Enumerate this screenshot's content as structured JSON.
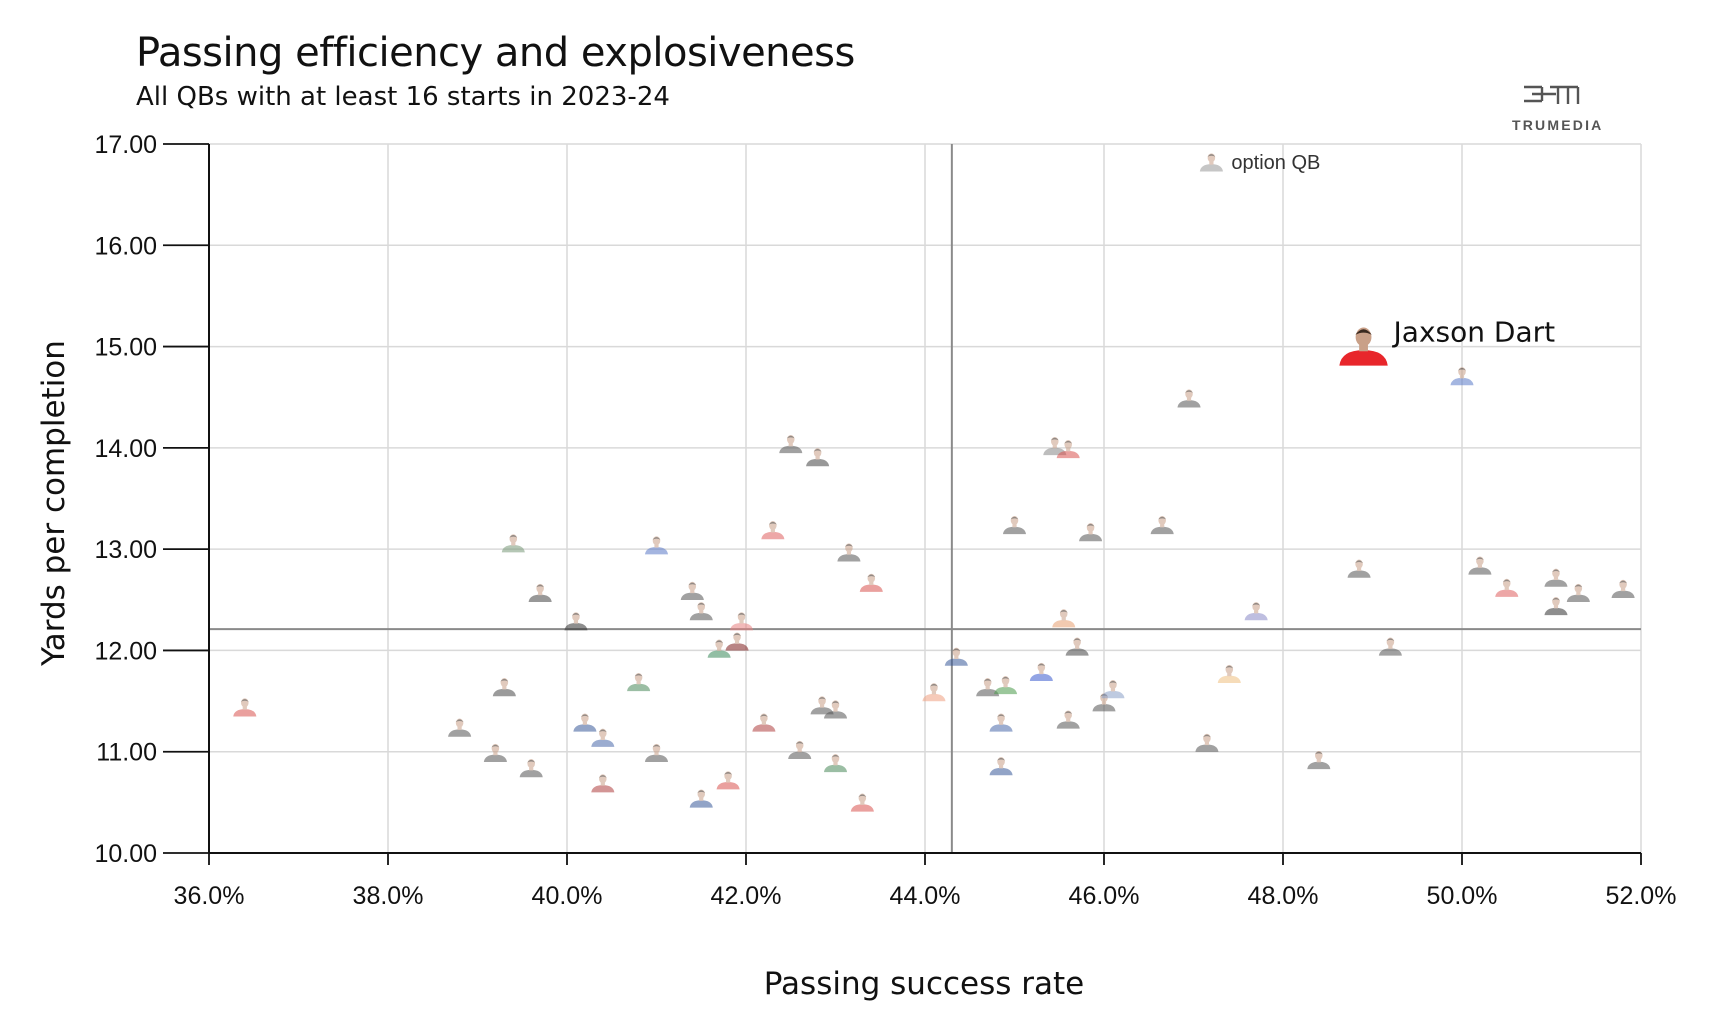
{
  "header": {
    "title": "Passing efficiency and explosiveness",
    "subtitle": "All QBs with at least 16 starts in 2023-24"
  },
  "brand": {
    "name": "TRUMEDIA",
    "mark": "TM"
  },
  "legend": {
    "icon": "qb-headshot-icon",
    "label": "option QB"
  },
  "colors": {
    "grid": "#d9d9d9",
    "axis": "#111111",
    "reference_line": "#8a8a8a",
    "highlight_jersey": "#e8262b",
    "faded_point": "#b8b8b8"
  },
  "chart_data": {
    "type": "scatter",
    "title": "Passing efficiency and explosiveness",
    "subtitle": "All QBs with at least 16 starts in 2023-24",
    "xlabel": "Passing success rate",
    "ylabel": "Yards per completion",
    "xlim": [
      36.0,
      52.0
    ],
    "ylim": [
      10.0,
      17.0
    ],
    "xticks": [
      "36.0%",
      "38.0%",
      "40.0%",
      "42.0%",
      "44.0%",
      "46.0%",
      "48.0%",
      "50.0%",
      "52.0%"
    ],
    "yticks": [
      "10.00",
      "11.00",
      "12.00",
      "13.00",
      "14.00",
      "15.00",
      "16.00",
      "17.00"
    ],
    "grid": true,
    "reference_lines": {
      "x": 44.3,
      "y": 12.21
    },
    "highlight": {
      "name": "Jaxson Dart",
      "x": 48.9,
      "y": 15.0
    },
    "points": [
      {
        "x": 36.4,
        "y": 11.4,
        "jersey": "#d9534f"
      },
      {
        "x": 38.8,
        "y": 11.2,
        "jersey": "#555555"
      },
      {
        "x": 39.2,
        "y": 10.95,
        "jersey": "#555555"
      },
      {
        "x": 39.3,
        "y": 11.6,
        "jersey": "#4a4a4a"
      },
      {
        "x": 39.4,
        "y": 13.02,
        "jersey": "#7a9a7a"
      },
      {
        "x": 39.6,
        "y": 10.8,
        "jersey": "#555555"
      },
      {
        "x": 39.7,
        "y": 12.53,
        "jersey": "#444444"
      },
      {
        "x": 40.1,
        "y": 12.25,
        "jersey": "#333333"
      },
      {
        "x": 40.2,
        "y": 11.25,
        "jersey": "#3a5a9a"
      },
      {
        "x": 40.4,
        "y": 11.1,
        "jersey": "#4a6aaa"
      },
      {
        "x": 40.4,
        "y": 10.65,
        "jersey": "#b04040"
      },
      {
        "x": 40.8,
        "y": 11.65,
        "jersey": "#4a8a5a"
      },
      {
        "x": 41.0,
        "y": 13.0,
        "jersey": "#5a7ac8"
      },
      {
        "x": 41.0,
        "y": 10.95,
        "jersey": "#555555"
      },
      {
        "x": 41.4,
        "y": 12.55,
        "jersey": "#555555"
      },
      {
        "x": 41.5,
        "y": 12.35,
        "jersey": "#555555"
      },
      {
        "x": 41.5,
        "y": 10.5,
        "jersey": "#3a5a9a"
      },
      {
        "x": 41.7,
        "y": 11.98,
        "jersey": "#3a8a5a"
      },
      {
        "x": 41.8,
        "y": 10.68,
        "jersey": "#d9534f"
      },
      {
        "x": 41.9,
        "y": 12.05,
        "jersey": "#802020"
      },
      {
        "x": 41.95,
        "y": 12.25,
        "jersey": "#e88080"
      },
      {
        "x": 42.2,
        "y": 11.25,
        "jersey": "#b04040"
      },
      {
        "x": 42.3,
        "y": 13.15,
        "jersey": "#e06060"
      },
      {
        "x": 42.5,
        "y": 14.0,
        "jersey": "#555555"
      },
      {
        "x": 42.6,
        "y": 10.98,
        "jersey": "#555555"
      },
      {
        "x": 42.8,
        "y": 13.87,
        "jersey": "#444444"
      },
      {
        "x": 42.85,
        "y": 11.42,
        "jersey": "#555555"
      },
      {
        "x": 43.0,
        "y": 10.85,
        "jersey": "#4a8a5a"
      },
      {
        "x": 43.0,
        "y": 11.38,
        "jersey": "#555555"
      },
      {
        "x": 43.15,
        "y": 12.93,
        "jersey": "#555555"
      },
      {
        "x": 43.3,
        "y": 10.46,
        "jersey": "#d9534f"
      },
      {
        "x": 43.4,
        "y": 12.63,
        "jersey": "#d9534f"
      },
      {
        "x": 44.1,
        "y": 11.55,
        "jersey": "#f0a080"
      },
      {
        "x": 44.35,
        "y": 11.9,
        "jersey": "#3a5a9a"
      },
      {
        "x": 44.7,
        "y": 11.6,
        "jersey": "#555555"
      },
      {
        "x": 44.85,
        "y": 10.82,
        "jersey": "#3a5a9a"
      },
      {
        "x": 44.85,
        "y": 11.25,
        "jersey": "#4a6aaa"
      },
      {
        "x": 44.9,
        "y": 11.62,
        "jersey": "#4a9a4a"
      },
      {
        "x": 45.0,
        "y": 13.2,
        "jersey": "#555555"
      },
      {
        "x": 45.3,
        "y": 11.75,
        "jersey": "#3a5acf"
      },
      {
        "x": 45.45,
        "y": 13.98,
        "jersey": "#888888"
      },
      {
        "x": 45.55,
        "y": 12.28,
        "jersey": "#e8a070"
      },
      {
        "x": 45.6,
        "y": 11.28,
        "jersey": "#555555"
      },
      {
        "x": 45.6,
        "y": 13.95,
        "jersey": "#d9534f"
      },
      {
        "x": 45.7,
        "y": 12.0,
        "jersey": "#444444"
      },
      {
        "x": 45.85,
        "y": 13.13,
        "jersey": "#555555"
      },
      {
        "x": 46.0,
        "y": 11.45,
        "jersey": "#555555"
      },
      {
        "x": 46.1,
        "y": 11.58,
        "jersey": "#8aa0c8"
      },
      {
        "x": 46.65,
        "y": 13.2,
        "jersey": "#555555"
      },
      {
        "x": 46.95,
        "y": 14.45,
        "jersey": "#555555"
      },
      {
        "x": 47.15,
        "y": 11.05,
        "jersey": "#555555"
      },
      {
        "x": 47.4,
        "y": 11.73,
        "jersey": "#f0c080"
      },
      {
        "x": 47.7,
        "y": 12.35,
        "jersey": "#8a8ac8"
      },
      {
        "x": 48.4,
        "y": 10.88,
        "jersey": "#555555"
      },
      {
        "x": 48.85,
        "y": 12.77,
        "jersey": "#555555"
      },
      {
        "x": 49.2,
        "y": 12.0,
        "jersey": "#555555"
      },
      {
        "x": 50.0,
        "y": 14.67,
        "jersey": "#5a7ac8"
      },
      {
        "x": 50.2,
        "y": 12.8,
        "jersey": "#555555"
      },
      {
        "x": 50.5,
        "y": 12.58,
        "jersey": "#e06060"
      },
      {
        "x": 51.05,
        "y": 12.68,
        "jersey": "#555555"
      },
      {
        "x": 51.05,
        "y": 12.4,
        "jersey": "#333333"
      },
      {
        "x": 51.3,
        "y": 12.53,
        "jersey": "#555555"
      },
      {
        "x": 51.8,
        "y": 12.57,
        "jersey": "#555555"
      }
    ],
    "annotations": [
      {
        "text": "Jaxson Dart",
        "x": 48.9,
        "y": 15.0
      },
      {
        "text": "option QB",
        "x": 47.2,
        "y": 16.82
      }
    ]
  }
}
